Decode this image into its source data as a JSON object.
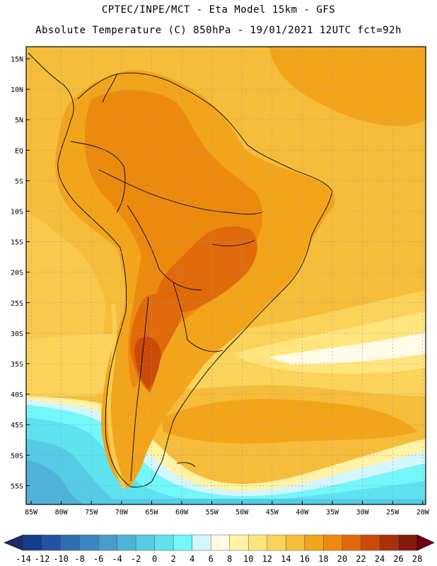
{
  "header": {
    "line1": "CPTEC/INPE/MCT -  Eta Model 15km - GFS",
    "line2": "Absolute Temperature (C) 850hPa - 19/01/2021 12UTC fct=92h"
  },
  "axes": {
    "lat_labels": [
      "15N",
      "10N",
      "5N",
      "EQ",
      "5S",
      "10S",
      "15S",
      "20S",
      "25S",
      "30S",
      "35S",
      "40S",
      "45S",
      "50S",
      "55S"
    ],
    "lon_labels": [
      "85W",
      "80W",
      "75W",
      "70W",
      "65W",
      "60W",
      "55W",
      "50W",
      "45W",
      "40W",
      "35W",
      "30W",
      "25W",
      "20W"
    ]
  },
  "colorbar": {
    "labels": [
      "-14",
      "-12",
      "-10",
      "-8",
      "-6",
      "-4",
      "-2",
      "0",
      "2",
      "4",
      "6",
      "8",
      "10",
      "12",
      "14",
      "16",
      "18",
      "20",
      "22",
      "24",
      "26",
      "28"
    ],
    "colors": [
      "#173c8c",
      "#2553a3",
      "#2f6db4",
      "#3a86c2",
      "#469ccd",
      "#4fb3d9",
      "#55cbe6",
      "#5fe2ef",
      "#74f7fb",
      "#d4f6ff",
      "#fffbe6",
      "#fff3a6",
      "#ffe57c",
      "#fbd35a",
      "#f6bd3a",
      "#f2a51a",
      "#ec8a0e",
      "#e06a0a",
      "#cc4a08",
      "#a9300b",
      "#861a0c"
    ],
    "low_color": "#1a2e6e",
    "high_color": "#6e0010"
  }
}
